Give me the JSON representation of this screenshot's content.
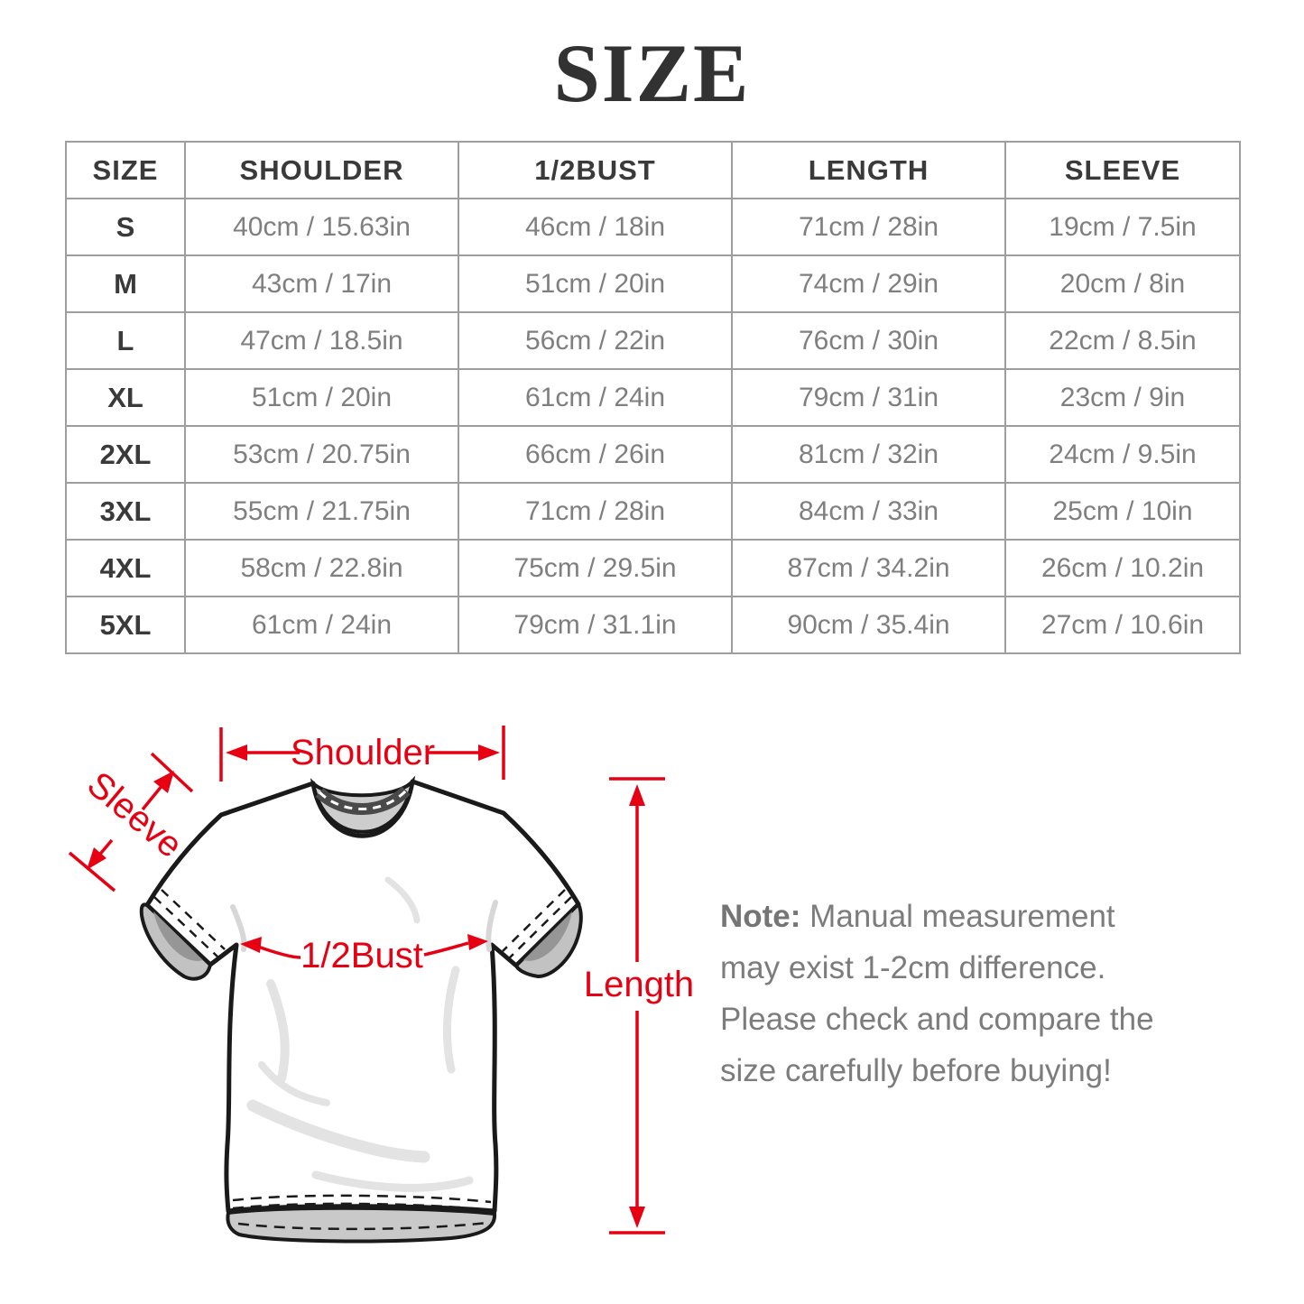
{
  "page": {
    "title": "SIZE"
  },
  "table": {
    "headers": [
      "SIZE",
      "SHOULDER",
      "1/2BUST",
      "LENGTH",
      "SLEEVE"
    ],
    "rows": [
      {
        "size": "S",
        "shoulder": "40cm / 15.63in",
        "half_bust": "46cm / 18in",
        "length": "71cm / 28in",
        "sleeve": "19cm / 7.5in"
      },
      {
        "size": "M",
        "shoulder": "43cm / 17in",
        "half_bust": "51cm / 20in",
        "length": "74cm / 29in",
        "sleeve": "20cm / 8in"
      },
      {
        "size": "L",
        "shoulder": "47cm / 18.5in",
        "half_bust": "56cm / 22in",
        "length": "76cm / 30in",
        "sleeve": "22cm / 8.5in"
      },
      {
        "size": "XL",
        "shoulder": "51cm / 20in",
        "half_bust": "61cm / 24in",
        "length": "79cm / 31in",
        "sleeve": "23cm / 9in"
      },
      {
        "size": "2XL",
        "shoulder": "53cm / 20.75in",
        "half_bust": "66cm / 26in",
        "length": "81cm / 32in",
        "sleeve": "24cm / 9.5in"
      },
      {
        "size": "3XL",
        "shoulder": "55cm / 21.75in",
        "half_bust": "71cm / 28in",
        "length": "84cm / 33in",
        "sleeve": "25cm / 10in"
      },
      {
        "size": "4XL",
        "shoulder": "58cm / 22.8in",
        "half_bust": "75cm / 29.5in",
        "length": "87cm / 34.2in",
        "sleeve": "26cm / 10.2in"
      },
      {
        "size": "5XL",
        "shoulder": "61cm / 24in",
        "half_bust": "79cm / 31.1in",
        "length": "90cm / 35.4in",
        "sleeve": "27cm / 10.6in"
      }
    ]
  },
  "diagram": {
    "labels": {
      "shoulder": "Shoulder",
      "sleeve": "Sleeve",
      "half_bust": "1/2Bust",
      "length": "Length"
    }
  },
  "note": {
    "prefix": "Note:",
    "text": " Manual measurement may exist 1-2cm difference. Please check and compare the size carefully before buying!"
  },
  "colors": {
    "accent_red": "#e60012",
    "table_border": "#9e9e9e",
    "header_text": "#3a3a3a",
    "cell_text": "#7f7f7f",
    "note_text": "#7c7c7c",
    "title_text": "#323232",
    "collar_gray": "#cdcdcd",
    "cuff_gray": "#c2c2c2"
  }
}
